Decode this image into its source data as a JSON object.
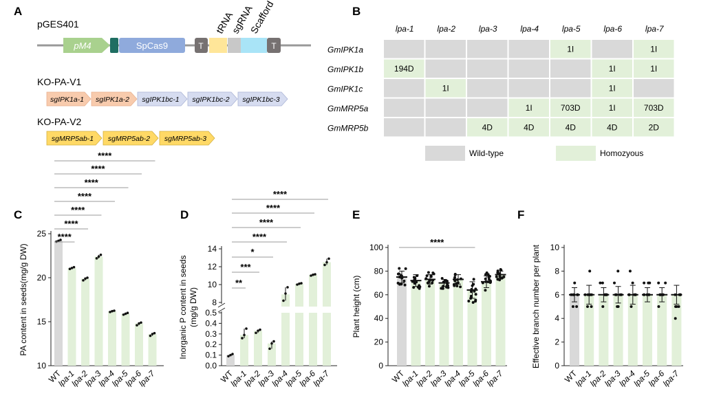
{
  "panels": {
    "a": "A",
    "b": "B",
    "c": "C",
    "d": "D",
    "e": "E",
    "f": "F"
  },
  "colors": {
    "wt_bar": "#d9d9d9",
    "mut_bar": "#e2f0d9",
    "green": "#a9d18e",
    "blue_segment": "#8faadc",
    "yellow": "#ffe699",
    "cyan": "#a9e4f7",
    "gray_dark": "#767171",
    "teal": "#1f6e62",
    "pink": "#f8cbad",
    "arrow_blue": "#d6dcf0",
    "arrow_yellow": "#ffd966",
    "matrix_green": "#e2f0d9",
    "matrix_gray": "#d9d9d9"
  },
  "panel_a": {
    "plasmid": "pGES401",
    "elements": {
      "pm4": "pM4",
      "cas9": "SpCas9",
      "t1": "T",
      "trna": "tRNA",
      "sgrna": "sgRNA",
      "scafford": "Scafford",
      "t2": "T"
    },
    "v1_title": "KO-PA-V1",
    "v1_arrows": [
      "sgIPK1a-1",
      "sgIPK1a-2",
      "sgIPK1bc-1",
      "sgIPK1bc-2",
      "sgIPK1bc-3"
    ],
    "v2_title": "KO-PA-V2",
    "v2_arrows": [
      "sgMRP5ab-1",
      "sgMRP5ab-2",
      "sgMRP5ab-3"
    ]
  },
  "panel_b": {
    "columns": [
      "lpa-1",
      "lpa-2",
      "lpa-3",
      "lpa-4",
      "lpa-5",
      "lpa-6",
      "lpa-7"
    ],
    "rows": [
      {
        "gene": "GmIPK1a",
        "cells": [
          "",
          "",
          "",
          "",
          "1I",
          "",
          "1I"
        ],
        "status": [
          "w",
          "w",
          "w",
          "w",
          "h",
          "w",
          "h"
        ]
      },
      {
        "gene": "GmIPK1b",
        "cells": [
          "194D",
          "",
          "",
          "",
          "",
          "1I",
          "1I"
        ],
        "status": [
          "h",
          "w",
          "w",
          "w",
          "w",
          "h",
          "h"
        ]
      },
      {
        "gene": "GmIPK1c",
        "cells": [
          "",
          "1I",
          "",
          "",
          "",
          "1I",
          ""
        ],
        "status": [
          "w",
          "h",
          "w",
          "w",
          "w",
          "h",
          "w"
        ]
      },
      {
        "gene": "GmMRP5a",
        "cells": [
          "",
          "",
          "",
          "1I",
          "703D",
          "1I",
          "703D"
        ],
        "status": [
          "w",
          "w",
          "w",
          "h",
          "h",
          "h",
          "h"
        ]
      },
      {
        "gene": "GmMRP5b",
        "cells": [
          "",
          "",
          "4D",
          "4D",
          "4D",
          "4D",
          "2D"
        ],
        "status": [
          "w",
          "w",
          "h",
          "h",
          "h",
          "h",
          "h"
        ]
      }
    ],
    "legend": [
      "Wild-type",
      "Homozyous"
    ]
  },
  "chart_data": [
    {
      "panel": "C",
      "type": "bar",
      "ylabel": "PA content in seeds(mg/g DW)",
      "ylim": [
        10,
        25
      ],
      "yticks": [
        "10",
        "15",
        "20",
        "25"
      ],
      "categories": [
        "WT",
        "lpa-1",
        "lpa-2",
        "lpa-3",
        "lpa-4",
        "lpa-5",
        "lpa-6",
        "lpa-7"
      ],
      "values": [
        24.2,
        21.1,
        19.9,
        22.4,
        16.2,
        15.9,
        14.8,
        13.6
      ],
      "points": [
        [
          24.1,
          24.2,
          24.3
        ],
        [
          21.0,
          21.1,
          21.2
        ],
        [
          19.7,
          19.9,
          20.0
        ],
        [
          22.2,
          22.4,
          22.6
        ],
        [
          16.1,
          16.2,
          16.25
        ],
        [
          15.8,
          15.9,
          16.0
        ],
        [
          14.6,
          14.8,
          14.9
        ],
        [
          13.4,
          13.6,
          13.7
        ]
      ],
      "significance": [
        "****",
        "****",
        "****",
        "****",
        "****",
        "****",
        "****"
      ]
    },
    {
      "panel": "D",
      "type": "bar",
      "ylabel": "Inorganic P content in seeds (mg/g DW)",
      "yticks_low": [
        "0.0",
        "0.1",
        "0.2",
        "0.3",
        "0.4",
        "0.5"
      ],
      "yticks_high": [
        "8",
        "10",
        "12",
        "14"
      ],
      "categories": [
        "WT",
        "lpa-1",
        "lpa-2",
        "lpa-3",
        "lpa-4",
        "lpa-5",
        "lpa-6",
        "lpa-7"
      ],
      "values": [
        0.1,
        0.29,
        0.33,
        0.21,
        8.9,
        10.1,
        11.1,
        12.5
      ],
      "points": [
        [
          0.09,
          0.1,
          0.11
        ],
        [
          0.26,
          0.29,
          0.35
        ],
        [
          0.31,
          0.33,
          0.34
        ],
        [
          0.16,
          0.21,
          0.23
        ],
        [
          8.2,
          9.0,
          9.7
        ],
        [
          10.0,
          10.1,
          10.15
        ],
        [
          11.0,
          11.1,
          11.15
        ],
        [
          12.2,
          12.5,
          12.9
        ]
      ],
      "significance": [
        "**",
        "***",
        "*",
        "****",
        "****",
        "****",
        "****"
      ]
    },
    {
      "panel": "E",
      "type": "bar",
      "ylabel": "Plant height (cm)",
      "ylim": [
        0,
        100
      ],
      "yticks": [
        "0",
        "20",
        "40",
        "60",
        "80",
        "100"
      ],
      "categories": [
        "WT",
        "lpa-1",
        "lpa-2",
        "lpa-3",
        "lpa-4",
        "lpa-5",
        "lpa-6",
        "lpa-7"
      ],
      "values": [
        75,
        72,
        73,
        70,
        73,
        64,
        71,
        77
      ],
      "sd": [
        5,
        5,
        4,
        3,
        4,
        7,
        5,
        3
      ],
      "significance": [
        "****"
      ]
    },
    {
      "panel": "F",
      "type": "bar",
      "ylabel": "Effective branch number per plant",
      "ylim": [
        0,
        10
      ],
      "yticks": [
        "0",
        "2",
        "4",
        "6",
        "8",
        "10"
      ],
      "categories": [
        "WT",
        "lpa-1",
        "lpa-2",
        "lpa-3",
        "lpa-4",
        "lpa-5",
        "lpa-6",
        "lpa-7"
      ],
      "values": [
        6,
        6,
        6,
        6,
        6,
        6,
        6,
        6
      ],
      "sd": [
        0.6,
        0.8,
        0.6,
        0.7,
        0.8,
        0.6,
        0.6,
        0.8
      ]
    }
  ]
}
